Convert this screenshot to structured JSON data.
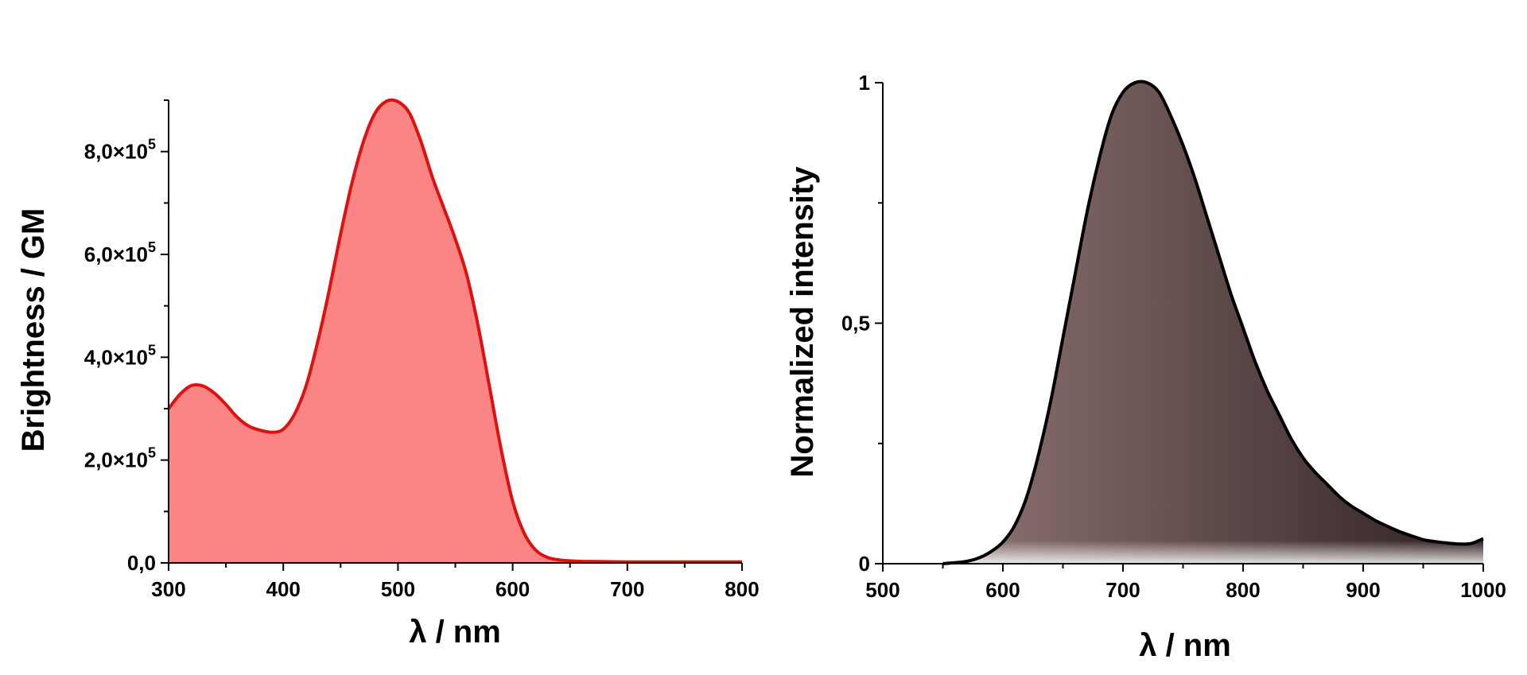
{
  "chart_data": [
    {
      "type": "area",
      "title": "",
      "xlabel": "λ / nm",
      "ylabel": "Brightness / GM",
      "xlim": [
        300,
        800
      ],
      "ylim": [
        0,
        900000
      ],
      "x_ticks": [
        "300",
        "400",
        "500",
        "600",
        "700",
        "800"
      ],
      "y_ticks": [
        {
          "mantissa": "0,0",
          "exp": ""
        },
        {
          "mantissa": "2,0×10",
          "exp": "5"
        },
        {
          "mantissa": "4,0×10",
          "exp": "5"
        },
        {
          "mantissa": "6,0×10",
          "exp": "5"
        },
        {
          "mantissa": "8,0×10",
          "exp": "5"
        }
      ],
      "y_tick_values": [
        0,
        200000,
        400000,
        600000,
        800000
      ],
      "grid": false,
      "colors": {
        "line": "#e01010",
        "fill": "#fb8585"
      },
      "series": [
        {
          "x": [
            300,
            310,
            320,
            330,
            340,
            350,
            360,
            370,
            380,
            390,
            400,
            410,
            420,
            430,
            440,
            450,
            460,
            470,
            480,
            490,
            500,
            510,
            520,
            530,
            540,
            550,
            560,
            570,
            580,
            590,
            600,
            610,
            620,
            630,
            640,
            650,
            660,
            680,
            700,
            750,
            800
          ],
          "y": [
            300000,
            328000,
            345000,
            344000,
            330000,
            308000,
            283000,
            266000,
            258000,
            254000,
            260000,
            290000,
            345000,
            430000,
            530000,
            640000,
            740000,
            820000,
            875000,
            898000,
            897000,
            875000,
            820000,
            750000,
            690000,
            630000,
            560000,
            460000,
            340000,
            220000,
            120000,
            58000,
            25000,
            11000,
            6000,
            4000,
            3000,
            2500,
            2000,
            2000,
            2000
          ]
        }
      ]
    },
    {
      "type": "area",
      "title": "",
      "xlabel": "λ / nm",
      "ylabel": "Normalized intensity",
      "xlim": [
        500,
        1000
      ],
      "ylim": [
        0,
        1
      ],
      "x_ticks": [
        "500",
        "600",
        "700",
        "800",
        "900",
        "1000"
      ],
      "y_ticks": [
        "0",
        "0,5",
        "1"
      ],
      "y_tick_values": [
        0,
        0.5,
        1
      ],
      "grid": false,
      "colors": {
        "line": "#000000",
        "fill_start": "#917575",
        "fill_end": "#2e2020"
      },
      "series": [
        {
          "x": [
            550,
            560,
            570,
            580,
            590,
            600,
            610,
            620,
            630,
            640,
            650,
            660,
            670,
            680,
            690,
            700,
            710,
            720,
            730,
            740,
            750,
            760,
            770,
            780,
            790,
            800,
            810,
            820,
            830,
            840,
            850,
            860,
            870,
            880,
            890,
            900,
            910,
            920,
            930,
            940,
            950,
            960,
            970,
            980,
            990,
            1000
          ],
          "y": [
            0,
            0.002,
            0.005,
            0.012,
            0.025,
            0.045,
            0.08,
            0.14,
            0.23,
            0.34,
            0.47,
            0.6,
            0.73,
            0.84,
            0.93,
            0.98,
            1.0,
            1.0,
            0.98,
            0.93,
            0.87,
            0.8,
            0.72,
            0.64,
            0.56,
            0.49,
            0.42,
            0.36,
            0.31,
            0.26,
            0.22,
            0.19,
            0.165,
            0.14,
            0.12,
            0.105,
            0.09,
            0.078,
            0.067,
            0.058,
            0.05,
            0.046,
            0.043,
            0.041,
            0.042,
            0.052
          ]
        }
      ]
    }
  ]
}
